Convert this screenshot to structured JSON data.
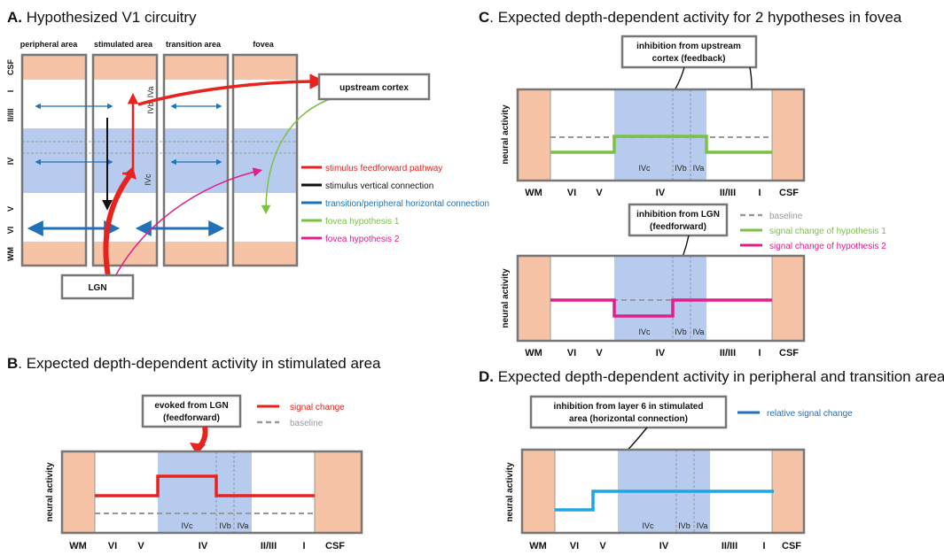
{
  "panels": {
    "a": {
      "letter": "A.",
      "title": " Hypothesized V1 circuitry"
    },
    "b": {
      "letter": "B",
      "title": ". Expected depth-dependent activity in stimulated area"
    },
    "c": {
      "letter": "C",
      "title": ". Expected depth-dependent activity for 2 hypotheses in fovea"
    },
    "d": {
      "letter": "D.",
      "title": " Expected depth-dependent activity in peripheral and transition area"
    }
  },
  "areas": [
    "peripheral area",
    "stimulated area",
    "transition area",
    "fovea"
  ],
  "layers_vertical": [
    "CSF",
    "I",
    "II/III",
    "IV",
    "V",
    "VI",
    "WM"
  ],
  "sublayers": {
    "ivc": "IVc",
    "ivb": "IVb",
    "iva": "IVa"
  },
  "nodes": {
    "upstream": "upstream cortex",
    "lgn": "LGN"
  },
  "legend_a": [
    {
      "label": "stimulus feedforward pathway",
      "color": "#e8231f"
    },
    {
      "label": "stimulus vertical connection",
      "color": "#111111"
    },
    {
      "label": "transition/peripheral horizontal connection",
      "color": "#1f72b8"
    },
    {
      "label": "fovea hypothesis 1",
      "color": "#7cc242"
    },
    {
      "label": "fovea hypothesis 2",
      "color": "#e01e8c"
    }
  ],
  "plot_axis": {
    "ylabel": "neural activity",
    "ticks": [
      "WM",
      "VI",
      "V",
      "IV",
      "II/III",
      "I",
      "CSF"
    ]
  },
  "panel_b": {
    "callout": [
      "evoked from LGN",
      "(feedforward)"
    ],
    "legend": [
      {
        "label": "signal change",
        "color": "#e8231f"
      },
      {
        "label": "baseline",
        "color": "#999999"
      }
    ]
  },
  "panel_c": {
    "callout1": [
      "inhibition from upstream",
      "cortex (feedback)"
    ],
    "callout2": [
      "inhibition from LGN",
      "(feedforward)"
    ],
    "legend": [
      {
        "label": "baseline",
        "color": "#999999"
      },
      {
        "label": "signal change of hypothesis 1",
        "color": "#7cc242"
      },
      {
        "label": "signal change of hypothesis 2",
        "color": "#e01e8c"
      }
    ]
  },
  "panel_d": {
    "callout": [
      "inhibition from layer 6 in stimulated",
      "area (horizontal connection)"
    ],
    "legend": [
      {
        "label": "relative signal change",
        "color": "#1f72b8"
      }
    ]
  },
  "colors": {
    "csf": "#f7c3a6",
    "layer4": "#b7cbef",
    "frame": "#777777",
    "red": "#e8231f",
    "green": "#7cc242",
    "magenta": "#e01e8c",
    "blue": "#1f72b8",
    "cyan": "#1ea5e6",
    "baseline": "#999999"
  }
}
